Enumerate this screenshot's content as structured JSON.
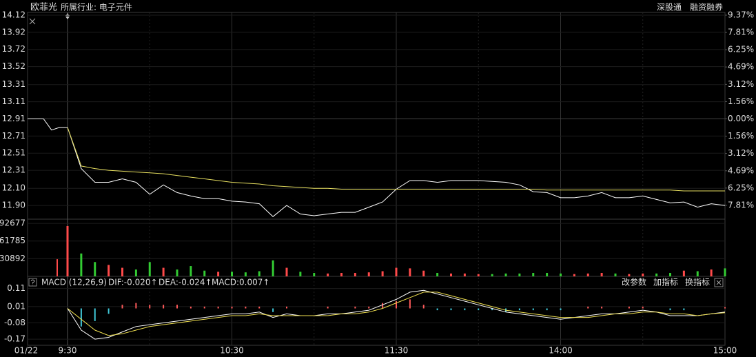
{
  "header": {
    "stock": "欧菲光",
    "industry": "所属行业: 电子元件",
    "links": [
      "深股通",
      "融资融券"
    ]
  },
  "chart_data": [
    {
      "type": "line",
      "x": [
        0,
        5,
        10,
        15,
        20,
        25,
        30,
        35,
        40,
        45,
        50,
        55,
        60,
        65,
        70,
        75,
        80,
        85,
        90,
        95,
        100,
        105,
        110,
        115,
        120,
        125,
        130,
        135,
        140,
        145,
        150,
        155,
        160,
        165,
        170,
        175,
        180,
        185,
        190,
        195,
        200,
        205,
        210,
        215,
        220,
        225,
        230,
        235,
        240
      ],
      "xlim": [
        0,
        240
      ],
      "xticks": [
        {
          "value": 0,
          "label": "9:30"
        },
        {
          "value": 60,
          "label": "10:30"
        },
        {
          "value": 120,
          "label": "11:30"
        },
        {
          "value": 180,
          "label": "14:00"
        },
        {
          "value": 240,
          "label": "15:00"
        }
      ],
      "auction_values": [
        12.91,
        12.91,
        12.91,
        12.78,
        12.81,
        12.81
      ],
      "series": [
        {
          "color": "#ffffff",
          "values": [
            12.81,
            12.33,
            12.17,
            12.17,
            12.21,
            12.17,
            12.03,
            12.14,
            12.05,
            12.01,
            11.98,
            11.98,
            11.95,
            11.94,
            11.92,
            11.77,
            11.9,
            11.8,
            11.78,
            11.8,
            11.82,
            11.82,
            11.88,
            11.94,
            12.09,
            12.19,
            12.19,
            12.17,
            12.19,
            12.19,
            12.19,
            12.18,
            12.17,
            12.14,
            12.06,
            12.05,
            11.99,
            11.99,
            12.01,
            12.05,
            11.99,
            11.99,
            12.01,
            11.97,
            11.93,
            11.94,
            11.88,
            11.92,
            11.9
          ]
        },
        {
          "color": "#e8e060",
          "values": [
            12.81,
            12.36,
            12.33,
            12.31,
            12.3,
            12.29,
            12.28,
            12.27,
            12.25,
            12.23,
            12.21,
            12.19,
            12.17,
            12.16,
            12.15,
            12.13,
            12.12,
            12.11,
            12.1,
            12.1,
            12.09,
            12.09,
            12.09,
            12.09,
            12.09,
            12.09,
            12.09,
            12.09,
            12.09,
            12.09,
            12.09,
            12.09,
            12.09,
            12.09,
            12.09,
            12.08,
            12.08,
            12.08,
            12.08,
            12.08,
            12.08,
            12.08,
            12.08,
            12.08,
            12.08,
            12.07,
            12.07,
            12.07,
            12.07
          ]
        }
      ],
      "ylim": [
        11.74,
        14.12
      ],
      "yticks": [
        14.12,
        13.92,
        13.72,
        13.52,
        13.31,
        13.11,
        12.91,
        12.71,
        12.51,
        12.31,
        {
          "value": 12.1,
          "label": "12.10"
        },
        {
          "value": 11.9,
          "label": "11.90"
        }
      ],
      "y2lim": [
        -9.06,
        9.37
      ],
      "y2ticks": [
        {
          "value": 9.37,
          "label": "9.37%"
        },
        {
          "value": 7.81,
          "label": "7.81%"
        },
        {
          "value": 6.25,
          "label": "6.25%"
        },
        {
          "value": 4.69,
          "label": "4.69%"
        },
        {
          "value": 3.12,
          "label": "3.12%"
        },
        {
          "value": 1.56,
          "label": "1.56%"
        },
        {
          "value": 0,
          "label": "0.00%"
        },
        {
          "value": -1.56,
          "label": "1.56%"
        },
        {
          "value": -3.12,
          "label": "3.12%"
        },
        {
          "value": -4.69,
          "label": "4.69%"
        },
        {
          "value": -6.25,
          "label": "6.25%"
        },
        {
          "value": -7.81,
          "label": "7.81%"
        }
      ],
      "up_color": "#ff4a4a",
      "down_color": "#33cc33"
    },
    {
      "type": "bar",
      "auction_value": 30000,
      "values": [
        88000,
        40000,
        25000,
        20000,
        15000,
        12000,
        25000,
        15000,
        12000,
        18000,
        10000,
        8000,
        8000,
        7000,
        9000,
        28000,
        15000,
        8000,
        6000,
        5000,
        6000,
        6000,
        7000,
        9000,
        15000,
        14000,
        10000,
        6000,
        5000,
        5000,
        4000,
        4000,
        5000,
        5000,
        6000,
        6000,
        5000,
        4000,
        5000,
        6000,
        5000,
        4000,
        5000,
        5000,
        6000,
        10000,
        9000,
        12000,
        14000
      ],
      "ylim": [
        0,
        100000
      ],
      "yticks": [
        92677,
        61785,
        30892
      ]
    },
    {
      "type": "macd",
      "title": "MACD (12,26,9)",
      "date": "01/22",
      "buttons": [
        "改参数",
        "加指标",
        "换指标"
      ],
      "series": [
        {
          "name": "DIF:-0.020↑",
          "color": "#ffffff",
          "values": [
            0,
            -0.12,
            -0.17,
            -0.16,
            -0.13,
            -0.1,
            -0.09,
            -0.08,
            -0.07,
            -0.06,
            -0.05,
            -0.04,
            -0.03,
            -0.03,
            -0.02,
            -0.05,
            -0.03,
            -0.04,
            -0.04,
            -0.03,
            -0.03,
            -0.02,
            -0.01,
            0.02,
            0.05,
            0.09,
            0.1,
            0.08,
            0.06,
            0.04,
            0.02,
            0,
            -0.02,
            -0.03,
            -0.04,
            -0.05,
            -0.06,
            -0.05,
            -0.04,
            -0.03,
            -0.03,
            -0.02,
            -0.01,
            -0.02,
            -0.04,
            -0.04,
            -0.04,
            -0.03,
            -0.02
          ]
        },
        {
          "name": "DEA:-0.024↑",
          "color": "#f0e050",
          "values": [
            0,
            -0.06,
            -0.12,
            -0.15,
            -0.14,
            -0.12,
            -0.1,
            -0.09,
            -0.08,
            -0.07,
            -0.06,
            -0.05,
            -0.04,
            -0.04,
            -0.03,
            -0.04,
            -0.04,
            -0.04,
            -0.04,
            -0.04,
            -0.03,
            -0.03,
            -0.02,
            0,
            0.03,
            0.06,
            0.09,
            0.09,
            0.07,
            0.05,
            0.03,
            0.01,
            -0.01,
            -0.02,
            -0.03,
            -0.04,
            -0.05,
            -0.05,
            -0.05,
            -0.04,
            -0.03,
            -0.03,
            -0.02,
            -0.02,
            -0.03,
            -0.03,
            -0.04,
            -0.03,
            -0.024
          ]
        },
        {
          "name": "MACD:0.007↑",
          "color": "#ff5a5a",
          "down_color": "#40c8d8",
          "values": [
            0,
            -0.1,
            -0.07,
            -0.03,
            0.02,
            0.03,
            0.02,
            0.02,
            0.02,
            0.01,
            0.01,
            0.01,
            0.01,
            0.01,
            0.01,
            -0.02,
            0.01,
            0,
            0,
            0.01,
            0,
            0.01,
            0.01,
            0.03,
            0.04,
            0.05,
            0.02,
            -0.01,
            -0.01,
            -0.01,
            -0.01,
            -0.01,
            -0.02,
            -0.01,
            -0.01,
            -0.01,
            -0.01,
            0,
            0.01,
            0.01,
            0,
            0.01,
            0.01,
            0,
            -0.01,
            -0.01,
            0,
            0,
            0.007
          ]
        }
      ],
      "ylim": [
        -0.2,
        0.12
      ],
      "yticks": [
        0.11,
        0.01,
        -0.08,
        -0.17
      ]
    }
  ]
}
